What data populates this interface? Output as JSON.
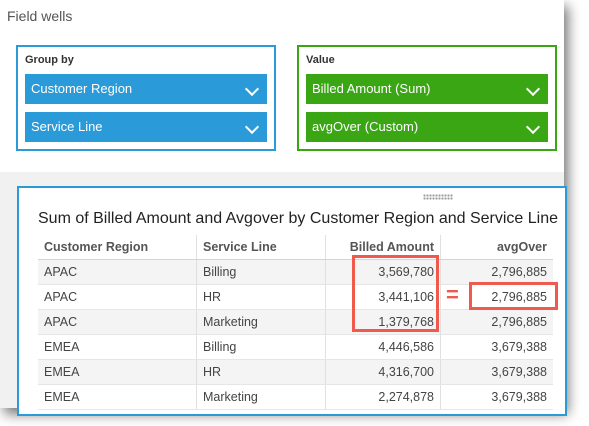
{
  "field_wells": {
    "title": "Field wells",
    "group_by": {
      "label": "Group by",
      "items": [
        "Customer Region",
        "Service Line"
      ],
      "color": "#2a9bd8"
    },
    "value": {
      "label": "Value",
      "items": [
        "Billed Amount (Sum)",
        "avgOver (Custom)"
      ],
      "color": "#3aa614"
    }
  },
  "visual": {
    "title": "Sum of Billed Amount and Avgover by Customer Region and Service Line",
    "columns": [
      "Customer Region",
      "Service Line",
      "Billed Amount",
      "avgOver"
    ],
    "rows": [
      [
        "APAC",
        "Billing",
        "3,569,780",
        "2,796,885"
      ],
      [
        "APAC",
        "HR",
        "3,441,106",
        "2,796,885"
      ],
      [
        "APAC",
        "Marketing",
        "1,379,768",
        "2,796,885"
      ],
      [
        "EMEA",
        "Billing",
        "4,446,586",
        "3,679,388"
      ],
      [
        "EMEA",
        "HR",
        "4,316,700",
        "3,679,388"
      ],
      [
        "EMEA",
        "Marketing",
        "2,274,878",
        "3,679,388"
      ]
    ]
  },
  "annotation": {
    "equals_sign": "=",
    "highlight_color": "#ef5a4d"
  }
}
